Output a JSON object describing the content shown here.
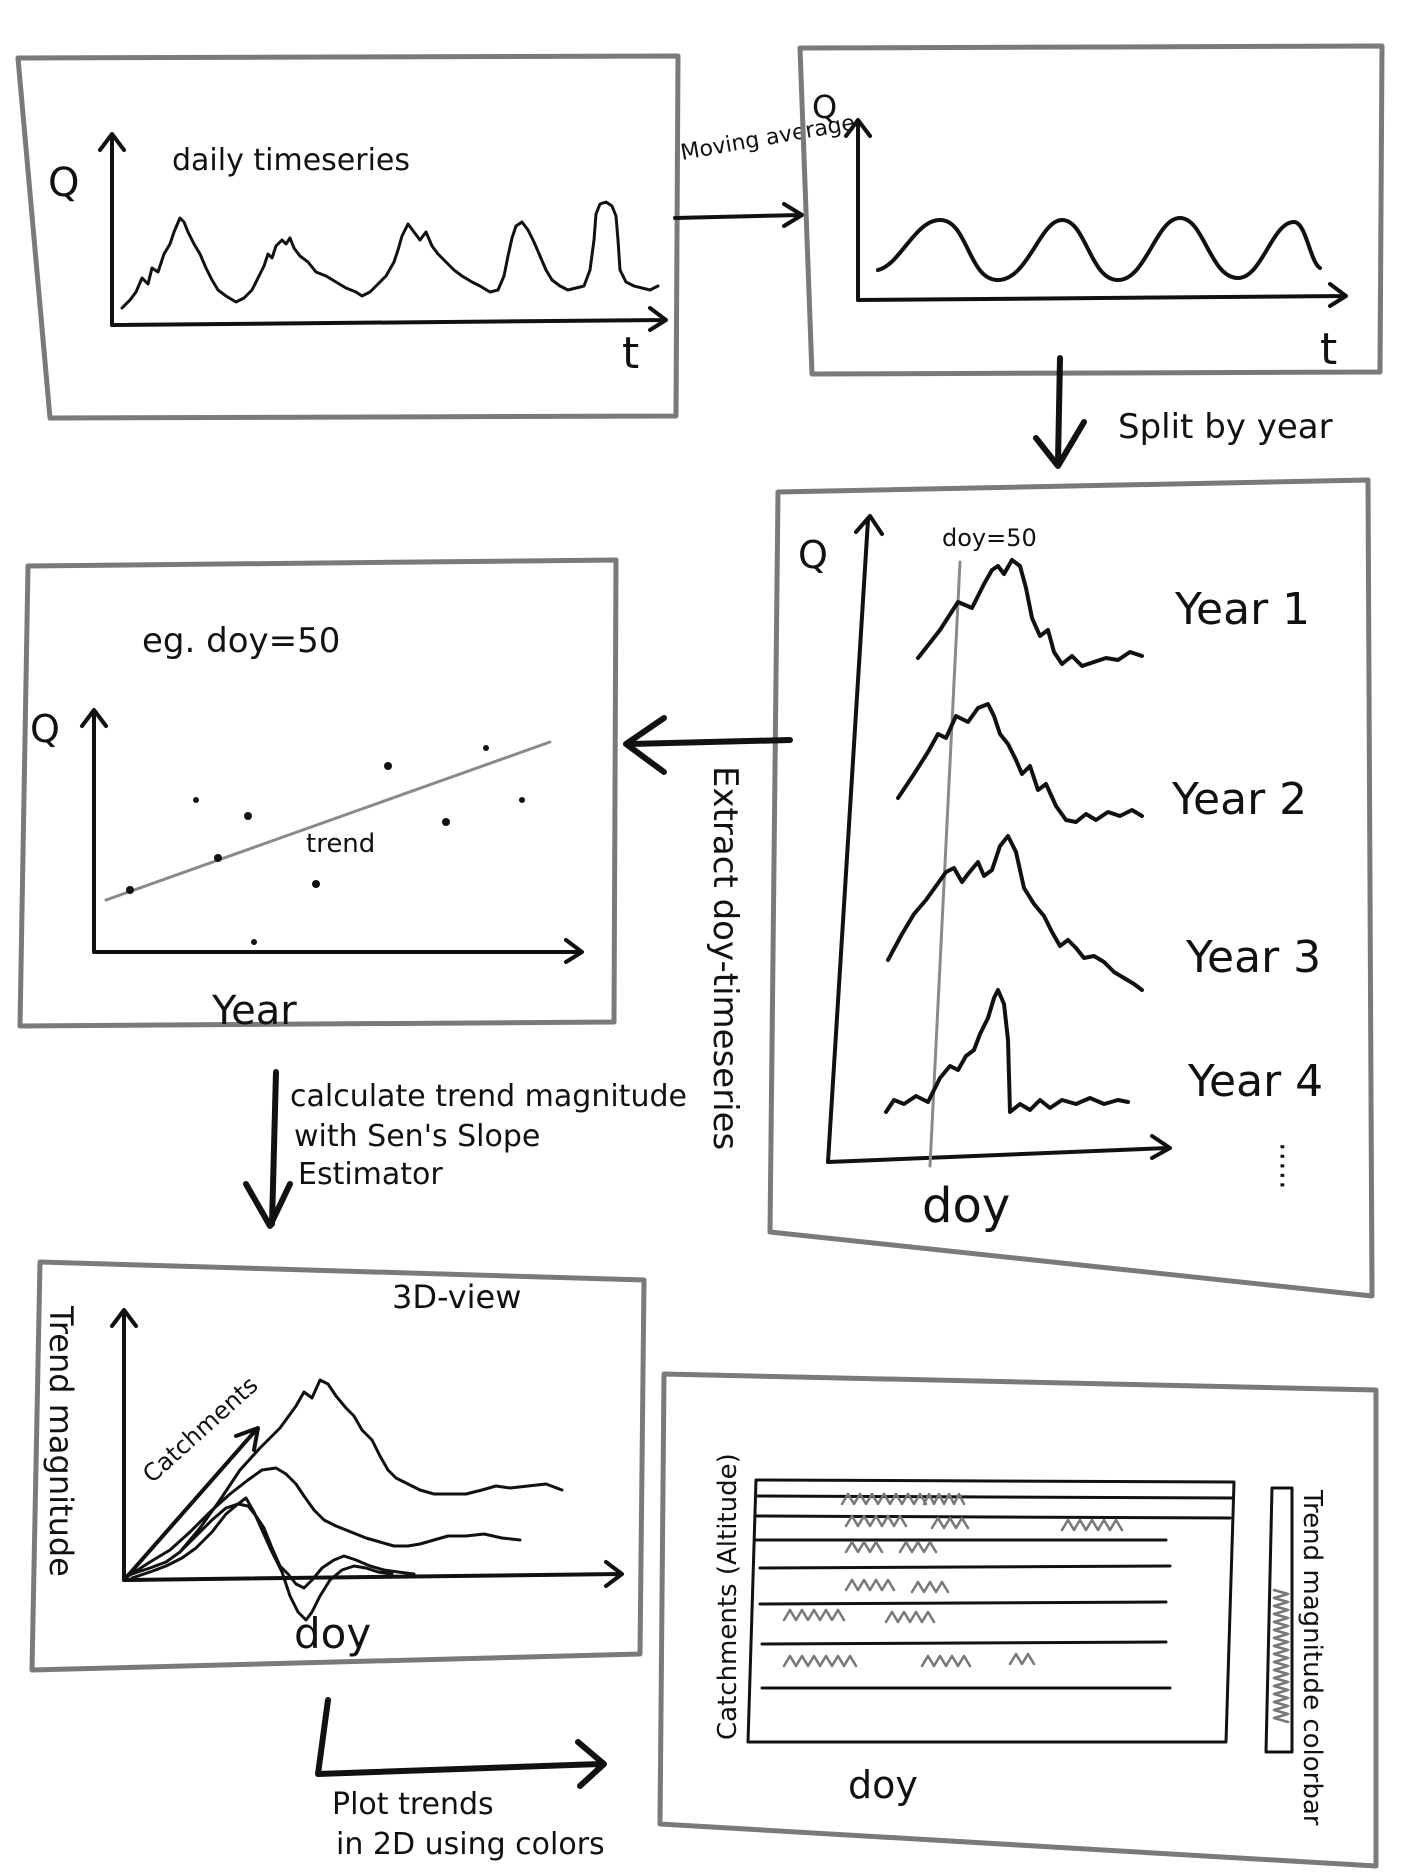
{
  "panels": {
    "daily": {
      "y_label": "Q",
      "x_label": "t",
      "title": "daily timeseries"
    },
    "smoothed": {
      "y_label": "Q",
      "x_label": "t"
    },
    "split": {
      "y_label": "Q",
      "x_label": "doy",
      "marker_label": "doy=50",
      "year_labels": [
        "Year 1",
        "Year 2",
        "Year 3",
        "Year 4"
      ],
      "continuation": "·····"
    },
    "doy_trend": {
      "title": "eg. doy=50",
      "y_label": "Q",
      "x_label": "Year",
      "trend_label": "trend"
    },
    "view3d": {
      "title": "3D-view",
      "y_label": "Trend magnitude",
      "depth_label": "Catchments",
      "x_label": "doy"
    },
    "heatmap": {
      "y_label": "Catchments (Altitude)",
      "x_label": "doy",
      "colorbar_label": "Trend magnitude colorbar"
    }
  },
  "arrows": {
    "moving_average": "Moving average",
    "split_by_year": "Split by year",
    "extract": "Extract doy-timeseries",
    "calculate_line1": "calculate trend magnitude",
    "calculate_line2": "with Sen's Slope",
    "calculate_line3": "Estimator",
    "plot_line1": "Plot trends",
    "plot_line2": "in 2D using colors"
  }
}
